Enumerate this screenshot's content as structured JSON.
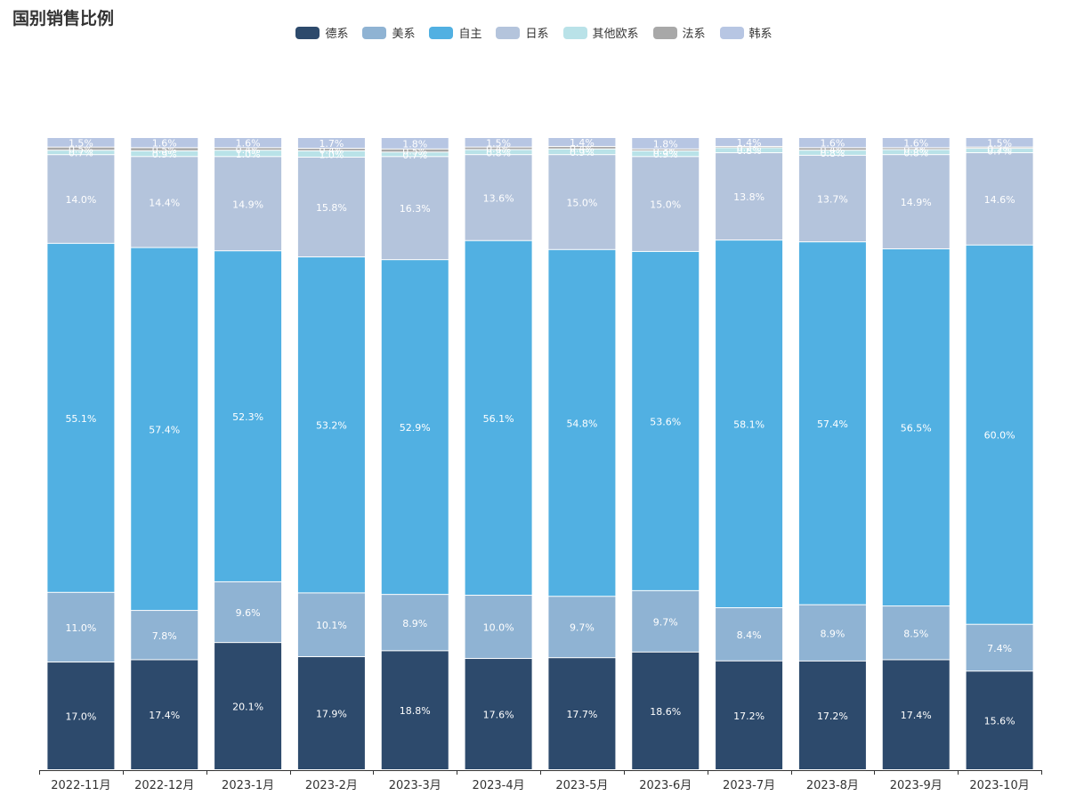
{
  "title": "国别销售比例",
  "chart_data": {
    "type": "bar",
    "stacked": true,
    "normalized": true,
    "title": "国别销售比例",
    "categories": [
      "2022-11月",
      "2022-12月",
      "2023-1月",
      "2023-2月",
      "2023-3月",
      "2023-4月",
      "2023-5月",
      "2023-6月",
      "2023-7月",
      "2023-8月",
      "2023-9月",
      "2023-10月"
    ],
    "series": [
      {
        "name": "德系",
        "color": "#2d4a6c",
        "values": [
          17.0,
          17.4,
          20.1,
          17.9,
          18.8,
          17.6,
          17.7,
          18.6,
          17.2,
          17.2,
          17.4,
          15.6
        ]
      },
      {
        "name": "美系",
        "color": "#8fb3d3",
        "values": [
          11.0,
          7.8,
          9.6,
          10.1,
          8.9,
          10.0,
          9.7,
          9.7,
          8.4,
          8.9,
          8.5,
          7.4
        ]
      },
      {
        "name": "自主",
        "color": "#51b0e2",
        "values": [
          55.1,
          57.4,
          52.3,
          53.2,
          52.9,
          56.1,
          54.8,
          53.6,
          58.1,
          57.4,
          56.5,
          60.0
        ]
      },
      {
        "name": "日系",
        "color": "#b4c4dc",
        "values": [
          14.0,
          14.4,
          14.9,
          15.8,
          16.3,
          13.6,
          15.0,
          15.0,
          13.8,
          13.7,
          14.9,
          14.6
        ]
      },
      {
        "name": "其他欧系",
        "color": "#b9e2e8",
        "values": [
          0.7,
          0.9,
          1.0,
          1.0,
          0.7,
          0.8,
          0.9,
          0.9,
          0.8,
          0.8,
          0.8,
          0.7
        ]
      },
      {
        "name": "法系",
        "color": "#a8a8a8",
        "values": [
          0.5,
          0.5,
          0.4,
          0.4,
          0.5,
          0.4,
          0.4,
          0.3,
          0.2,
          0.4,
          0.3,
          0.2
        ]
      },
      {
        "name": "韩系",
        "color": "#b7c6e3",
        "values": [
          1.5,
          1.6,
          1.6,
          1.7,
          1.8,
          1.5,
          1.4,
          1.8,
          1.4,
          1.6,
          1.6,
          1.5
        ]
      }
    ],
    "legend_position": "top-center",
    "grid": false,
    "value_labels": true,
    "xlabel": "",
    "ylabel": ""
  }
}
